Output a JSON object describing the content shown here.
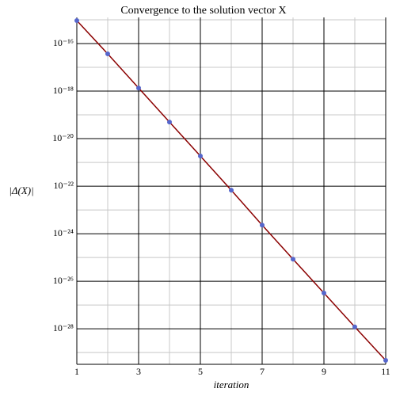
{
  "chart_data": {
    "type": "line",
    "title": "Convergence to the solution vector X",
    "x_label": "iteration",
    "y_label": "|Δ(X)|",
    "x": [
      1,
      2,
      3,
      4,
      5,
      6,
      7,
      8,
      9,
      10,
      11
    ],
    "series": [
      {
        "color": "#8b0000",
        "marker_color": "#5566cc",
        "values": [
          9.3e-16,
          3.7e-17,
          1.35e-18,
          5e-20,
          1.86e-21,
          6.8e-23,
          2.3e-24,
          8.5e-26,
          3.2e-27,
          1.2e-28,
          4.7e-30
        ]
      }
    ],
    "xlim": [
      1,
      11
    ],
    "xticks": [
      1,
      3,
      5,
      7,
      9,
      11
    ],
    "x_minor_ticks": [
      2,
      4,
      6,
      8,
      10
    ],
    "ylim": [
      3.2e-30,
      1.26e-15
    ],
    "y_log": true,
    "yticks": [
      {
        "value": 1e-16,
        "label": "10⁻¹⁶"
      },
      {
        "value": 1e-18,
        "label": "10⁻¹⁸"
      },
      {
        "value": 1e-20,
        "label": "10⁻²⁰"
      },
      {
        "value": 1e-22,
        "label": "10⁻²²"
      },
      {
        "value": 1e-24,
        "label": "10⁻²⁴"
      },
      {
        "value": 1e-26,
        "label": "10⁻²⁶"
      },
      {
        "value": 1e-28,
        "label": "10⁻²⁸"
      }
    ],
    "y_minor_ticks": [
      1e-15,
      1e-17,
      1e-19,
      1e-21,
      1e-23,
      1e-25,
      1e-27,
      1e-29
    ],
    "grid": true
  }
}
